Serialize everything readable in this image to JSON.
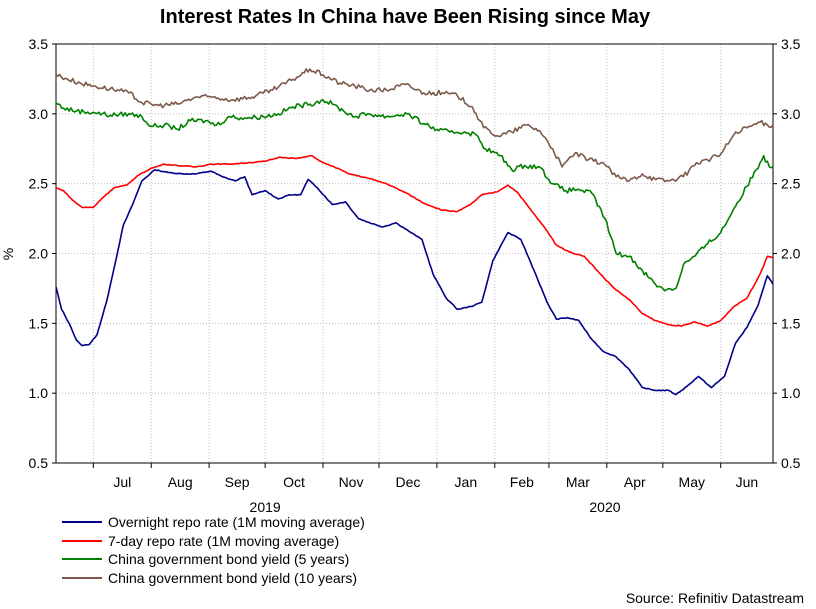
{
  "chart_data": {
    "type": "line",
    "title": "Interest Rates In China have Been Rising since May",
    "ylabel": "%",
    "ylim": [
      0.5,
      3.5
    ],
    "yticks": [
      "0.5",
      "1.0",
      "1.5",
      "2.0",
      "2.5",
      "3.0",
      "3.5"
    ],
    "month_labels": [
      "Jul",
      "Aug",
      "Sep",
      "Oct",
      "Nov",
      "Dec",
      "Jan",
      "Feb",
      "Mar",
      "Apr",
      "May",
      "Jun"
    ],
    "year_labels": [
      "2019",
      "2020"
    ],
    "x_start": "2019-06-11",
    "x_end": "2020-06-29",
    "grid": true,
    "series": [
      {
        "name": "Overnight repo rate (1M moving average)",
        "color": "#00008b",
        "points": [
          [
            "2019-06-11",
            1.76
          ],
          [
            "2019-06-14",
            1.6
          ],
          [
            "2019-06-18",
            1.5
          ],
          [
            "2019-06-22",
            1.38
          ],
          [
            "2019-06-25",
            1.34
          ],
          [
            "2019-06-29",
            1.35
          ],
          [
            "2019-07-03",
            1.42
          ],
          [
            "2019-07-08",
            1.65
          ],
          [
            "2019-07-13",
            1.95
          ],
          [
            "2019-07-17",
            2.2
          ],
          [
            "2019-07-22",
            2.35
          ],
          [
            "2019-07-27",
            2.52
          ],
          [
            "2019-08-03",
            2.6
          ],
          [
            "2019-08-10",
            2.58
          ],
          [
            "2019-08-18",
            2.57
          ],
          [
            "2019-08-25",
            2.57
          ],
          [
            "2019-09-02",
            2.59
          ],
          [
            "2019-09-08",
            2.55
          ],
          [
            "2019-09-15",
            2.52
          ],
          [
            "2019-09-20",
            2.55
          ],
          [
            "2019-09-24",
            2.42
          ],
          [
            "2019-10-01",
            2.45
          ],
          [
            "2019-10-08",
            2.39
          ],
          [
            "2019-10-14",
            2.42
          ],
          [
            "2019-10-20",
            2.42
          ],
          [
            "2019-10-24",
            2.53
          ],
          [
            "2019-10-29",
            2.47
          ],
          [
            "2019-11-06",
            2.35
          ],
          [
            "2019-11-13",
            2.37
          ],
          [
            "2019-11-20",
            2.25
          ],
          [
            "2019-11-26",
            2.22
          ],
          [
            "2019-12-03",
            2.19
          ],
          [
            "2019-12-10",
            2.22
          ],
          [
            "2019-12-17",
            2.16
          ],
          [
            "2019-12-24",
            2.1
          ],
          [
            "2019-12-30",
            1.85
          ],
          [
            "2020-01-06",
            1.68
          ],
          [
            "2020-01-12",
            1.6
          ],
          [
            "2020-01-19",
            1.62
          ],
          [
            "2020-01-25",
            1.65
          ],
          [
            "2020-01-31",
            1.95
          ],
          [
            "2020-02-08",
            2.15
          ],
          [
            "2020-02-15",
            2.1
          ],
          [
            "2020-02-22",
            1.88
          ],
          [
            "2020-02-29",
            1.65
          ],
          [
            "2020-03-05",
            1.53
          ],
          [
            "2020-03-11",
            1.54
          ],
          [
            "2020-03-17",
            1.52
          ],
          [
            "2020-03-23",
            1.4
          ],
          [
            "2020-03-30",
            1.3
          ],
          [
            "2020-04-06",
            1.26
          ],
          [
            "2020-04-13",
            1.17
          ],
          [
            "2020-04-20",
            1.04
          ],
          [
            "2020-04-27",
            1.02
          ],
          [
            "2020-05-04",
            1.02
          ],
          [
            "2020-05-08",
            0.99
          ],
          [
            "2020-05-14",
            1.05
          ],
          [
            "2020-05-20",
            1.12
          ],
          [
            "2020-05-27",
            1.04
          ],
          [
            "2020-06-03",
            1.12
          ],
          [
            "2020-06-09",
            1.36
          ],
          [
            "2020-06-15",
            1.47
          ],
          [
            "2020-06-21",
            1.63
          ],
          [
            "2020-06-26",
            1.84
          ],
          [
            "2020-06-29",
            1.78
          ]
        ]
      },
      {
        "name": "7-day repo rate (1M moving average)",
        "color": "#ff0000",
        "points": [
          [
            "2019-06-11",
            2.47
          ],
          [
            "2019-06-15",
            2.45
          ],
          [
            "2019-06-20",
            2.38
          ],
          [
            "2019-06-25",
            2.33
          ],
          [
            "2019-07-01",
            2.33
          ],
          [
            "2019-07-06",
            2.4
          ],
          [
            "2019-07-12",
            2.47
          ],
          [
            "2019-07-19",
            2.49
          ],
          [
            "2019-07-25",
            2.56
          ],
          [
            "2019-08-01",
            2.61
          ],
          [
            "2019-08-08",
            2.64
          ],
          [
            "2019-08-15",
            2.63
          ],
          [
            "2019-08-25",
            2.62
          ],
          [
            "2019-09-02",
            2.64
          ],
          [
            "2019-09-12",
            2.64
          ],
          [
            "2019-09-22",
            2.65
          ],
          [
            "2019-10-01",
            2.66
          ],
          [
            "2019-10-09",
            2.69
          ],
          [
            "2019-10-18",
            2.68
          ],
          [
            "2019-10-26",
            2.7
          ],
          [
            "2019-11-01",
            2.65
          ],
          [
            "2019-11-07",
            2.62
          ],
          [
            "2019-11-15",
            2.57
          ],
          [
            "2019-11-25",
            2.54
          ],
          [
            "2019-12-05",
            2.5
          ],
          [
            "2019-12-16",
            2.43
          ],
          [
            "2019-12-25",
            2.36
          ],
          [
            "2020-01-04",
            2.31
          ],
          [
            "2020-01-12",
            2.3
          ],
          [
            "2020-01-19",
            2.35
          ],
          [
            "2020-01-25",
            2.42
          ],
          [
            "2020-02-02",
            2.44
          ],
          [
            "2020-02-08",
            2.49
          ],
          [
            "2020-02-13",
            2.44
          ],
          [
            "2020-02-21",
            2.3
          ],
          [
            "2020-02-28",
            2.18
          ],
          [
            "2020-03-05",
            2.06
          ],
          [
            "2020-03-12",
            2.01
          ],
          [
            "2020-03-20",
            1.98
          ],
          [
            "2020-03-28",
            1.86
          ],
          [
            "2020-04-05",
            1.75
          ],
          [
            "2020-04-13",
            1.67
          ],
          [
            "2020-04-20",
            1.57
          ],
          [
            "2020-04-27",
            1.52
          ],
          [
            "2020-05-04",
            1.49
          ],
          [
            "2020-05-11",
            1.48
          ],
          [
            "2020-05-18",
            1.51
          ],
          [
            "2020-05-25",
            1.48
          ],
          [
            "2020-06-01",
            1.52
          ],
          [
            "2020-06-08",
            1.62
          ],
          [
            "2020-06-15",
            1.68
          ],
          [
            "2020-06-22",
            1.85
          ],
          [
            "2020-06-26",
            1.98
          ],
          [
            "2020-06-29",
            1.97
          ]
        ]
      },
      {
        "name": "China government bond yield (5 years)",
        "color": "#008000",
        "points": [
          [
            "2019-06-11",
            3.08
          ],
          [
            "2019-06-15",
            3.04
          ],
          [
            "2019-06-22",
            3.02
          ],
          [
            "2019-07-01",
            3.01
          ],
          [
            "2019-07-10",
            2.99
          ],
          [
            "2019-07-20",
            3.0
          ],
          [
            "2019-07-27",
            2.98
          ],
          [
            "2019-08-01",
            2.91
          ],
          [
            "2019-08-08",
            2.92
          ],
          [
            "2019-08-15",
            2.89
          ],
          [
            "2019-08-22",
            2.95
          ],
          [
            "2019-08-30",
            2.95
          ],
          [
            "2019-09-05",
            2.92
          ],
          [
            "2019-09-12",
            2.98
          ],
          [
            "2019-09-20",
            2.97
          ],
          [
            "2019-09-30",
            2.98
          ],
          [
            "2019-10-08",
            3.0
          ],
          [
            "2019-10-16",
            3.05
          ],
          [
            "2019-10-25",
            3.07
          ],
          [
            "2019-11-01",
            3.1
          ],
          [
            "2019-11-06",
            3.07
          ],
          [
            "2019-11-12",
            3.02
          ],
          [
            "2019-11-18",
            2.98
          ],
          [
            "2019-11-25",
            3.0
          ],
          [
            "2019-12-05",
            2.98
          ],
          [
            "2019-12-16",
            3.0
          ],
          [
            "2019-12-25",
            2.93
          ],
          [
            "2020-01-02",
            2.88
          ],
          [
            "2020-01-08",
            2.87
          ],
          [
            "2020-01-16",
            2.87
          ],
          [
            "2020-01-22",
            2.85
          ],
          [
            "2020-01-27",
            2.75
          ],
          [
            "2020-02-04",
            2.7
          ],
          [
            "2020-02-10",
            2.6
          ],
          [
            "2020-02-17",
            2.63
          ],
          [
            "2020-02-25",
            2.62
          ],
          [
            "2020-03-03",
            2.5
          ],
          [
            "2020-03-10",
            2.45
          ],
          [
            "2020-03-17",
            2.46
          ],
          [
            "2020-03-24",
            2.43
          ],
          [
            "2020-03-31",
            2.25
          ],
          [
            "2020-04-06",
            2.0
          ],
          [
            "2020-04-13",
            1.98
          ],
          [
            "2020-04-20",
            1.88
          ],
          [
            "2020-04-27",
            1.78
          ],
          [
            "2020-05-03",
            1.74
          ],
          [
            "2020-05-08",
            1.75
          ],
          [
            "2020-05-12",
            1.92
          ],
          [
            "2020-05-18",
            1.98
          ],
          [
            "2020-05-25",
            2.07
          ],
          [
            "2020-06-01",
            2.15
          ],
          [
            "2020-06-08",
            2.32
          ],
          [
            "2020-06-15",
            2.48
          ],
          [
            "2020-06-20",
            2.6
          ],
          [
            "2020-06-24",
            2.7
          ],
          [
            "2020-06-27",
            2.62
          ],
          [
            "2020-06-29",
            2.62
          ]
        ]
      },
      {
        "name": "China government bond yield (10 years)",
        "color": "#7b5a4a",
        "points": [
          [
            "2019-06-11",
            3.28
          ],
          [
            "2019-06-17",
            3.25
          ],
          [
            "2019-06-24",
            3.22
          ],
          [
            "2019-07-01",
            3.2
          ],
          [
            "2019-07-10",
            3.18
          ],
          [
            "2019-07-20",
            3.15
          ],
          [
            "2019-07-27",
            3.08
          ],
          [
            "2019-08-05",
            3.06
          ],
          [
            "2019-08-15",
            3.07
          ],
          [
            "2019-08-25",
            3.12
          ],
          [
            "2019-09-03",
            3.12
          ],
          [
            "2019-09-13",
            3.1
          ],
          [
            "2019-09-24",
            3.12
          ],
          [
            "2019-10-05",
            3.17
          ],
          [
            "2019-10-15",
            3.24
          ],
          [
            "2019-10-25",
            3.32
          ],
          [
            "2019-11-01",
            3.28
          ],
          [
            "2019-11-10",
            3.22
          ],
          [
            "2019-11-18",
            3.2
          ],
          [
            "2019-11-26",
            3.17
          ],
          [
            "2019-12-05",
            3.17
          ],
          [
            "2019-12-15",
            3.21
          ],
          [
            "2019-12-25",
            3.15
          ],
          [
            "2020-01-04",
            3.15
          ],
          [
            "2020-01-12",
            3.13
          ],
          [
            "2020-01-20",
            3.05
          ],
          [
            "2020-01-26",
            2.9
          ],
          [
            "2020-02-03",
            2.84
          ],
          [
            "2020-02-10",
            2.87
          ],
          [
            "2020-02-18",
            2.92
          ],
          [
            "2020-02-25",
            2.88
          ],
          [
            "2020-03-03",
            2.75
          ],
          [
            "2020-03-08",
            2.62
          ],
          [
            "2020-03-15",
            2.72
          ],
          [
            "2020-03-22",
            2.67
          ],
          [
            "2020-03-30",
            2.65
          ],
          [
            "2020-04-06",
            2.55
          ],
          [
            "2020-04-13",
            2.52
          ],
          [
            "2020-04-20",
            2.57
          ],
          [
            "2020-04-27",
            2.53
          ],
          [
            "2020-05-04",
            2.52
          ],
          [
            "2020-05-12",
            2.55
          ],
          [
            "2020-05-19",
            2.65
          ],
          [
            "2020-05-25",
            2.67
          ],
          [
            "2020-06-01",
            2.71
          ],
          [
            "2020-06-08",
            2.85
          ],
          [
            "2020-06-15",
            2.9
          ],
          [
            "2020-06-22",
            2.94
          ],
          [
            "2020-06-26",
            2.92
          ],
          [
            "2020-06-29",
            2.92
          ]
        ]
      }
    ]
  },
  "source": "Source: Refinitiv Datastream"
}
